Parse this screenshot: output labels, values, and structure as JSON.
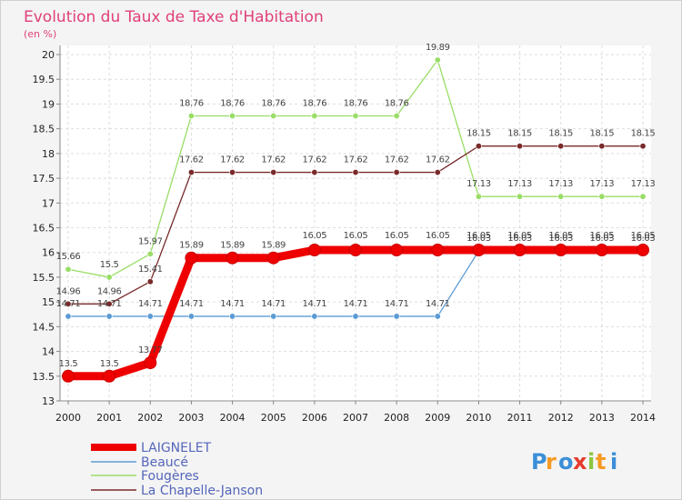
{
  "chart_data": {
    "type": "line",
    "title": "Evolution du Taux de Taxe d'Habitation",
    "subtitle": "(en %)",
    "x": [
      "2000",
      "2001",
      "2002",
      "2003",
      "2004",
      "2005",
      "2006",
      "2007",
      "2008",
      "2009",
      "2010",
      "2011",
      "2012",
      "2013",
      "2014"
    ],
    "ylim": [
      13,
      20
    ],
    "yticks": [
      "13",
      "13.5",
      "14",
      "14.5",
      "15",
      "15.5",
      "16",
      "16.5",
      "17",
      "17.5",
      "18",
      "18.5",
      "19",
      "19.5",
      "20"
    ],
    "grid": true,
    "legend_position": "bottom-left",
    "series": [
      {
        "name": "LAIGNELET",
        "color": "#ee0000",
        "values": [
          13.5,
          13.5,
          13.77,
          15.89,
          15.89,
          15.89,
          16.05,
          16.05,
          16.05,
          16.05,
          16.05,
          16.05,
          16.05,
          16.05,
          16.05
        ],
        "labels": [
          "13.5",
          "13.5",
          "13.77",
          "15.89",
          "15.89",
          "15.89",
          "16.05",
          "16.05",
          "16.05",
          "16.05",
          "16.05",
          "16.05",
          "16.05",
          "16.05",
          "16.05"
        ]
      },
      {
        "name": "Beaucé",
        "color": "#5b9bd5",
        "values": [
          14.71,
          14.71,
          14.71,
          14.71,
          14.71,
          14.71,
          14.71,
          14.71,
          14.71,
          14.71,
          16.03,
          16.03,
          16.03,
          16.03,
          16.03
        ],
        "labels": [
          "14.71",
          "14.71",
          "14.71",
          "14.71",
          "14.71",
          "14.71",
          "14.71",
          "14.71",
          "14.71",
          "14.71",
          "16.03",
          "16.03",
          "16.03",
          "16.03",
          "16.03"
        ]
      },
      {
        "name": "Fougères",
        "color": "#99dd66",
        "values": [
          15.66,
          15.5,
          15.97,
          18.76,
          18.76,
          18.76,
          18.76,
          18.76,
          18.76,
          19.89,
          17.13,
          17.13,
          17.13,
          17.13,
          17.13
        ],
        "labels": [
          "15.66",
          "15.5",
          "15.97",
          "18.76",
          "18.76",
          "18.76",
          "18.76",
          "18.76",
          "18.76",
          "19.89",
          "17.13",
          "17.13",
          "17.13",
          "17.13",
          "17.13"
        ]
      },
      {
        "name": "La Chapelle-Janson",
        "color": "#7a2a2a",
        "values": [
          14.96,
          14.96,
          15.41,
          17.62,
          17.62,
          17.62,
          17.62,
          17.62,
          17.62,
          17.62,
          18.15,
          18.15,
          18.15,
          18.15,
          18.15
        ],
        "labels": [
          "14.96",
          "14.96",
          "15.41",
          "17.62",
          "17.62",
          "17.62",
          "17.62",
          "17.62",
          "17.62",
          "17.62",
          "18.15",
          "18.15",
          "18.15",
          "18.15",
          "18.15"
        ]
      }
    ]
  },
  "logo": {
    "letters": [
      {
        "ch": "P",
        "color": "#3b8fd8"
      },
      {
        "ch": "r",
        "color": "#f59a23"
      },
      {
        "ch": "o",
        "color": "#3b8fd8"
      },
      {
        "ch": "x",
        "color": "#e63b2e"
      },
      {
        "ch": "i",
        "color": "#8cc63f"
      },
      {
        "ch": "t",
        "color": "#f59a23"
      },
      {
        "ch": "i",
        "color": "#3b8fd8"
      }
    ]
  }
}
